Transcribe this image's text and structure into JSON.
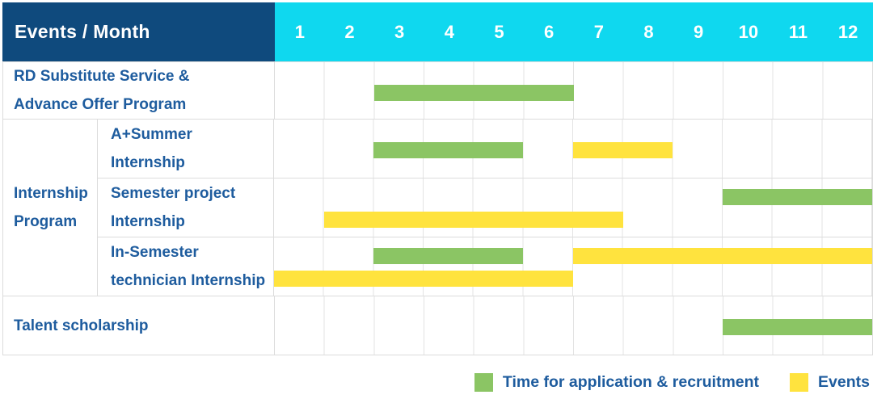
{
  "header": {
    "title": "Events / Month"
  },
  "months": [
    "1",
    "2",
    "3",
    "4",
    "5",
    "6",
    "7",
    "8",
    "9",
    "10",
    "11",
    "12"
  ],
  "colors": {
    "header_bg": "#0f4a7d",
    "months_bg": "#0fd8ef",
    "green": "#8bc564",
    "yellow": "#ffe33e",
    "label_text": "#1e5c9e",
    "grid": "#e3e3e3"
  },
  "group_label": "Internship\nProgram",
  "chart_data": {
    "type": "bar",
    "subtype": "gantt",
    "title": "Events / Month",
    "x_label": "Month",
    "x_range": [
      1,
      12
    ],
    "grid": true,
    "legend_position": "bottom-right",
    "rows": [
      {
        "label": "RD Substitute Service &\nAdvance Offer Program",
        "group": null,
        "bars": [
          {
            "color": "green",
            "start_month": 3,
            "end_month": 6,
            "lane": "center"
          }
        ]
      },
      {
        "label": "A+Summer\nInternship",
        "group": "Internship Program",
        "bars": [
          {
            "color": "green",
            "start_month": 3,
            "end_month": 5,
            "lane": "center"
          },
          {
            "color": "yellow",
            "start_month": 7,
            "end_month": 8,
            "lane": "center"
          }
        ]
      },
      {
        "label": "Semester project\nInternship",
        "group": "Internship Program",
        "bars": [
          {
            "color": "green",
            "start_month": 10,
            "end_month": 12,
            "lane": "top"
          },
          {
            "color": "yellow",
            "start_month": 2,
            "end_month": 7,
            "lane": "bottom"
          }
        ]
      },
      {
        "label": "In-Semester\ntechnician Internship",
        "group": "Internship Program",
        "bars": [
          {
            "color": "green",
            "start_month": 3,
            "end_month": 5,
            "lane": "top"
          },
          {
            "color": "yellow",
            "start_month": 7,
            "end_month": 12,
            "lane": "top"
          },
          {
            "color": "yellow",
            "start_month": 1,
            "end_month": 6,
            "lane": "bottom"
          }
        ]
      },
      {
        "label": "Talent scholarship",
        "group": null,
        "bars": [
          {
            "color": "green",
            "start_month": 10,
            "end_month": 12,
            "lane": "center"
          }
        ]
      }
    ],
    "legend": [
      {
        "label": "Time for application & recruitment",
        "color": "green"
      },
      {
        "label": "Events",
        "color": "yellow"
      }
    ]
  }
}
